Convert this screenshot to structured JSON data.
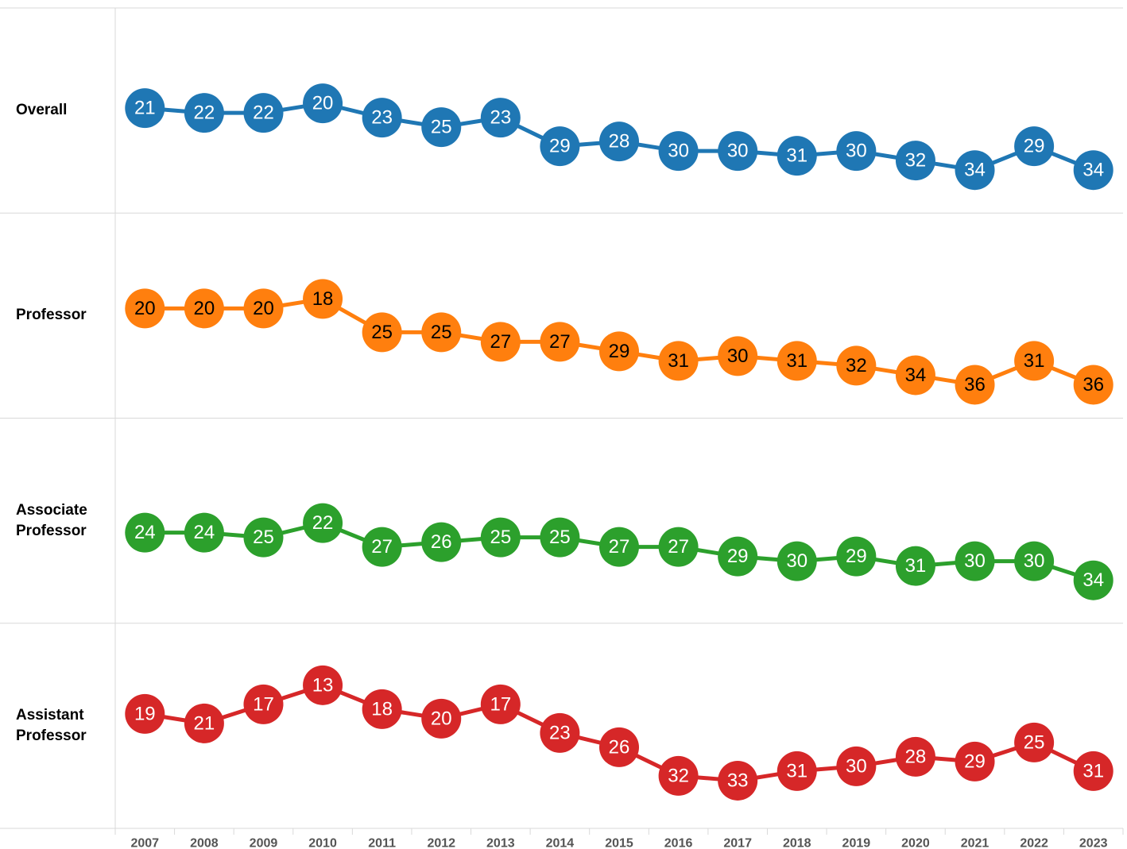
{
  "chart_data": [
    {
      "type": "line",
      "title": "Overall",
      "color": "#1f77b4",
      "label_color": "#ffffff",
      "categories": [
        "2007",
        "2008",
        "2009",
        "2010",
        "2011",
        "2012",
        "2013",
        "2014",
        "2015",
        "2016",
        "2017",
        "2018",
        "2019",
        "2020",
        "2021",
        "2022",
        "2023"
      ],
      "values": [
        21,
        22,
        22,
        20,
        23,
        25,
        23,
        29,
        28,
        30,
        30,
        31,
        30,
        32,
        34,
        29,
        34
      ],
      "ylim": [
        0,
        43
      ],
      "y_reversed": true
    },
    {
      "type": "line",
      "title": "Professor",
      "color": "#ff7f0e",
      "label_color": "#000000",
      "categories": [
        "2007",
        "2008",
        "2009",
        "2010",
        "2011",
        "2012",
        "2013",
        "2014",
        "2015",
        "2016",
        "2017",
        "2018",
        "2019",
        "2020",
        "2021",
        "2022",
        "2023"
      ],
      "values": [
        20,
        20,
        20,
        18,
        25,
        25,
        27,
        27,
        29,
        31,
        30,
        31,
        32,
        34,
        36,
        31,
        36
      ],
      "ylim": [
        0,
        43
      ],
      "y_reversed": true
    },
    {
      "type": "line",
      "title": "Associate Professor",
      "color": "#2ca02c",
      "label_color": "#ffffff",
      "categories": [
        "2007",
        "2008",
        "2009",
        "2010",
        "2011",
        "2012",
        "2013",
        "2014",
        "2015",
        "2016",
        "2017",
        "2018",
        "2019",
        "2020",
        "2021",
        "2022",
        "2023"
      ],
      "values": [
        24,
        24,
        25,
        22,
        27,
        26,
        25,
        25,
        27,
        27,
        29,
        30,
        29,
        31,
        30,
        30,
        34
      ],
      "ylim": [
        0,
        43
      ],
      "y_reversed": true
    },
    {
      "type": "line",
      "title": "Assistant Professor",
      "color": "#d62728",
      "label_color": "#ffffff",
      "categories": [
        "2007",
        "2008",
        "2009",
        "2010",
        "2011",
        "2012",
        "2013",
        "2014",
        "2015",
        "2016",
        "2017",
        "2018",
        "2019",
        "2020",
        "2021",
        "2022",
        "2023"
      ],
      "values": [
        19,
        21,
        17,
        13,
        18,
        20,
        17,
        23,
        26,
        32,
        33,
        31,
        30,
        28,
        29,
        25,
        31
      ],
      "ylim": [
        0,
        43
      ],
      "y_reversed": true
    }
  ]
}
